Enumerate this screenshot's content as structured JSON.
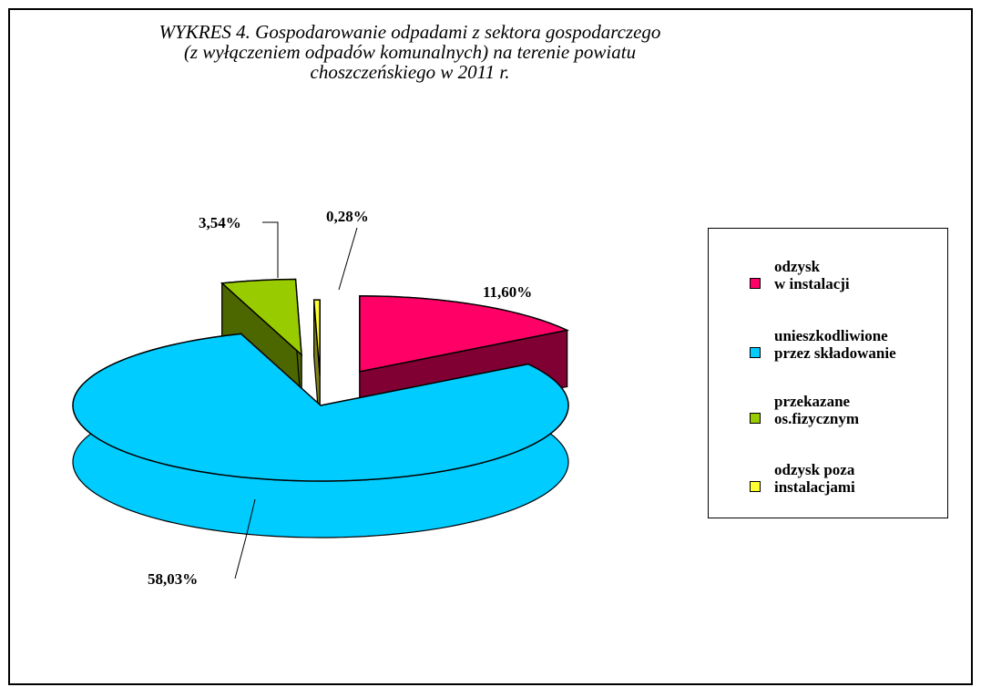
{
  "chart_data": {
    "type": "pie3d",
    "title": "WYKRES 4. Gospodarowanie odpadami z sektora gospodarczego\n(z wyłączeniem odpadów komunalnych) na terenie powiatu\nchoszczeńskiego w 2011 r.",
    "series": [
      {
        "name": "odzysk\nw instalacji",
        "color": "#ff0066",
        "values": [
          11.6
        ],
        "value_labels": [
          "11,60%"
        ]
      },
      {
        "name": "unieszkodliwione\nprzez składowanie",
        "color": "#00ccff",
        "values": [
          58.03
        ],
        "value_labels": [
          "58,03%"
        ]
      },
      {
        "name": "przekazane\nos.fizycznym",
        "color": "#99cc00",
        "values": [
          3.54
        ],
        "value_labels": [
          "3,54%"
        ]
      },
      {
        "name": "odzysk poza\ninstalacjami",
        "color": "#ffff33",
        "values": [
          0.28
        ],
        "value_labels": [
          "0,28%"
        ]
      }
    ]
  }
}
